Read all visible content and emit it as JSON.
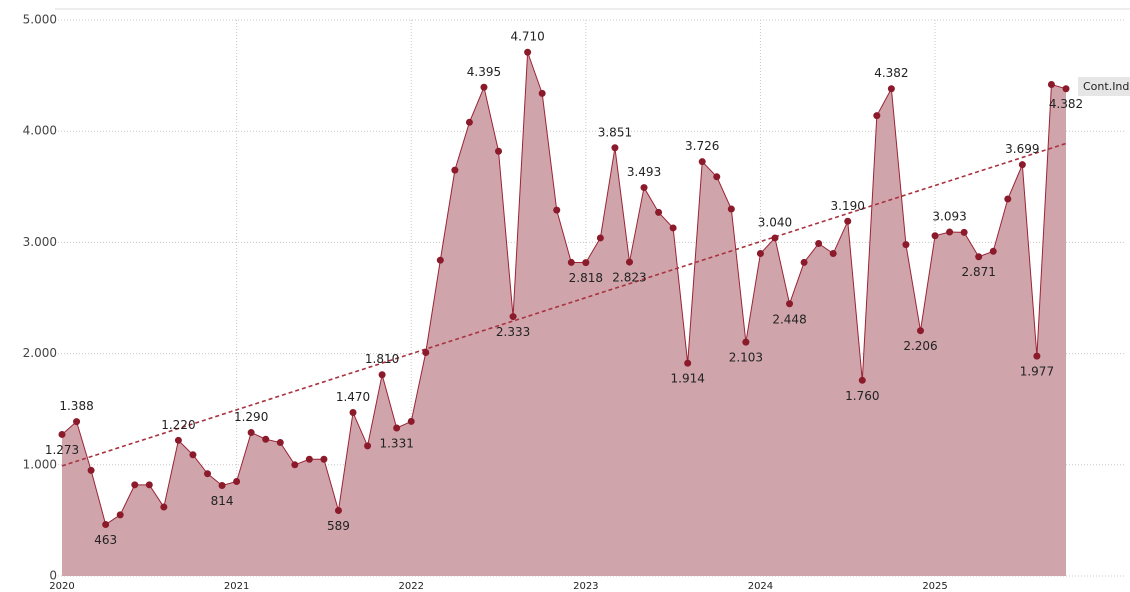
{
  "chart_data": {
    "type": "area",
    "categories": [
      "2020",
      null,
      null,
      null,
      null,
      null,
      null,
      null,
      null,
      null,
      null,
      null,
      "2021",
      null,
      null,
      null,
      null,
      null,
      null,
      null,
      null,
      null,
      null,
      null,
      "2022",
      null,
      null,
      null,
      null,
      null,
      null,
      null,
      null,
      null,
      null,
      null,
      "2023",
      null,
      null,
      null,
      null,
      null,
      null,
      null,
      null,
      null,
      null,
      null,
      "2024",
      null,
      null,
      null,
      null,
      null,
      null,
      null,
      null,
      null,
      null,
      null,
      "2025",
      null,
      null,
      null,
      null,
      null,
      null,
      null,
      null,
      null
    ],
    "series": [
      {
        "name": "Cont.Inde",
        "color": "#9b2335",
        "fill": "#cfa5ab",
        "values": [
          1273,
          1388,
          950,
          463,
          550,
          820,
          820,
          620,
          1220,
          1090,
          920,
          814,
          850,
          1290,
          1230,
          1200,
          1000,
          1050,
          1050,
          589,
          1470,
          1170,
          1810,
          1331,
          1390,
          2010,
          2840,
          3650,
          4080,
          4395,
          3820,
          2333,
          4710,
          4340,
          3290,
          2820,
          2818,
          3040,
          3851,
          2823,
          3493,
          3270,
          3130,
          1914,
          3726,
          3590,
          3300,
          2103,
          2900,
          3040,
          2448,
          2820,
          2990,
          2900,
          3190,
          1760,
          4140,
          4382,
          2980,
          2206,
          3060,
          3093,
          3090,
          2871,
          2920,
          3390,
          3699,
          1977,
          4420,
          4382
        ],
        "value_labels": [
          "1.273",
          "1.388",
          null,
          "463",
          null,
          null,
          null,
          null,
          "1.220",
          null,
          null,
          "814",
          null,
          "1.290",
          null,
          null,
          null,
          null,
          null,
          "589",
          "1.470",
          null,
          "1.810",
          "1.331",
          null,
          null,
          null,
          null,
          null,
          "4.395",
          null,
          "2.333",
          "4.710",
          null,
          null,
          null,
          "2.818",
          null,
          "3.851",
          "2.823",
          "3.493",
          null,
          null,
          "1.914",
          "3.726",
          null,
          null,
          "2.103",
          null,
          "3.040",
          "2.448",
          null,
          null,
          null,
          "3.190",
          "1.760",
          null,
          "4.382",
          null,
          "2.206",
          null,
          "3.093",
          null,
          "2.871",
          null,
          null,
          "3.699",
          "1.977",
          null,
          "4.382"
        ]
      }
    ],
    "trendline": {
      "color": "#a8323f",
      "values": [
        990,
        3890
      ]
    },
    "ylim": [
      0,
      5000
    ],
    "yticks": [
      0,
      {
        "value": 1000,
        "label": "1.000"
      },
      {
        "value": 2000,
        "label": "2.000"
      },
      {
        "value": 3000,
        "label": "3.000"
      },
      {
        "value": 4000,
        "label": "4.000"
      },
      {
        "value": 5000,
        "label": "5.000"
      }
    ],
    "grid": true
  }
}
